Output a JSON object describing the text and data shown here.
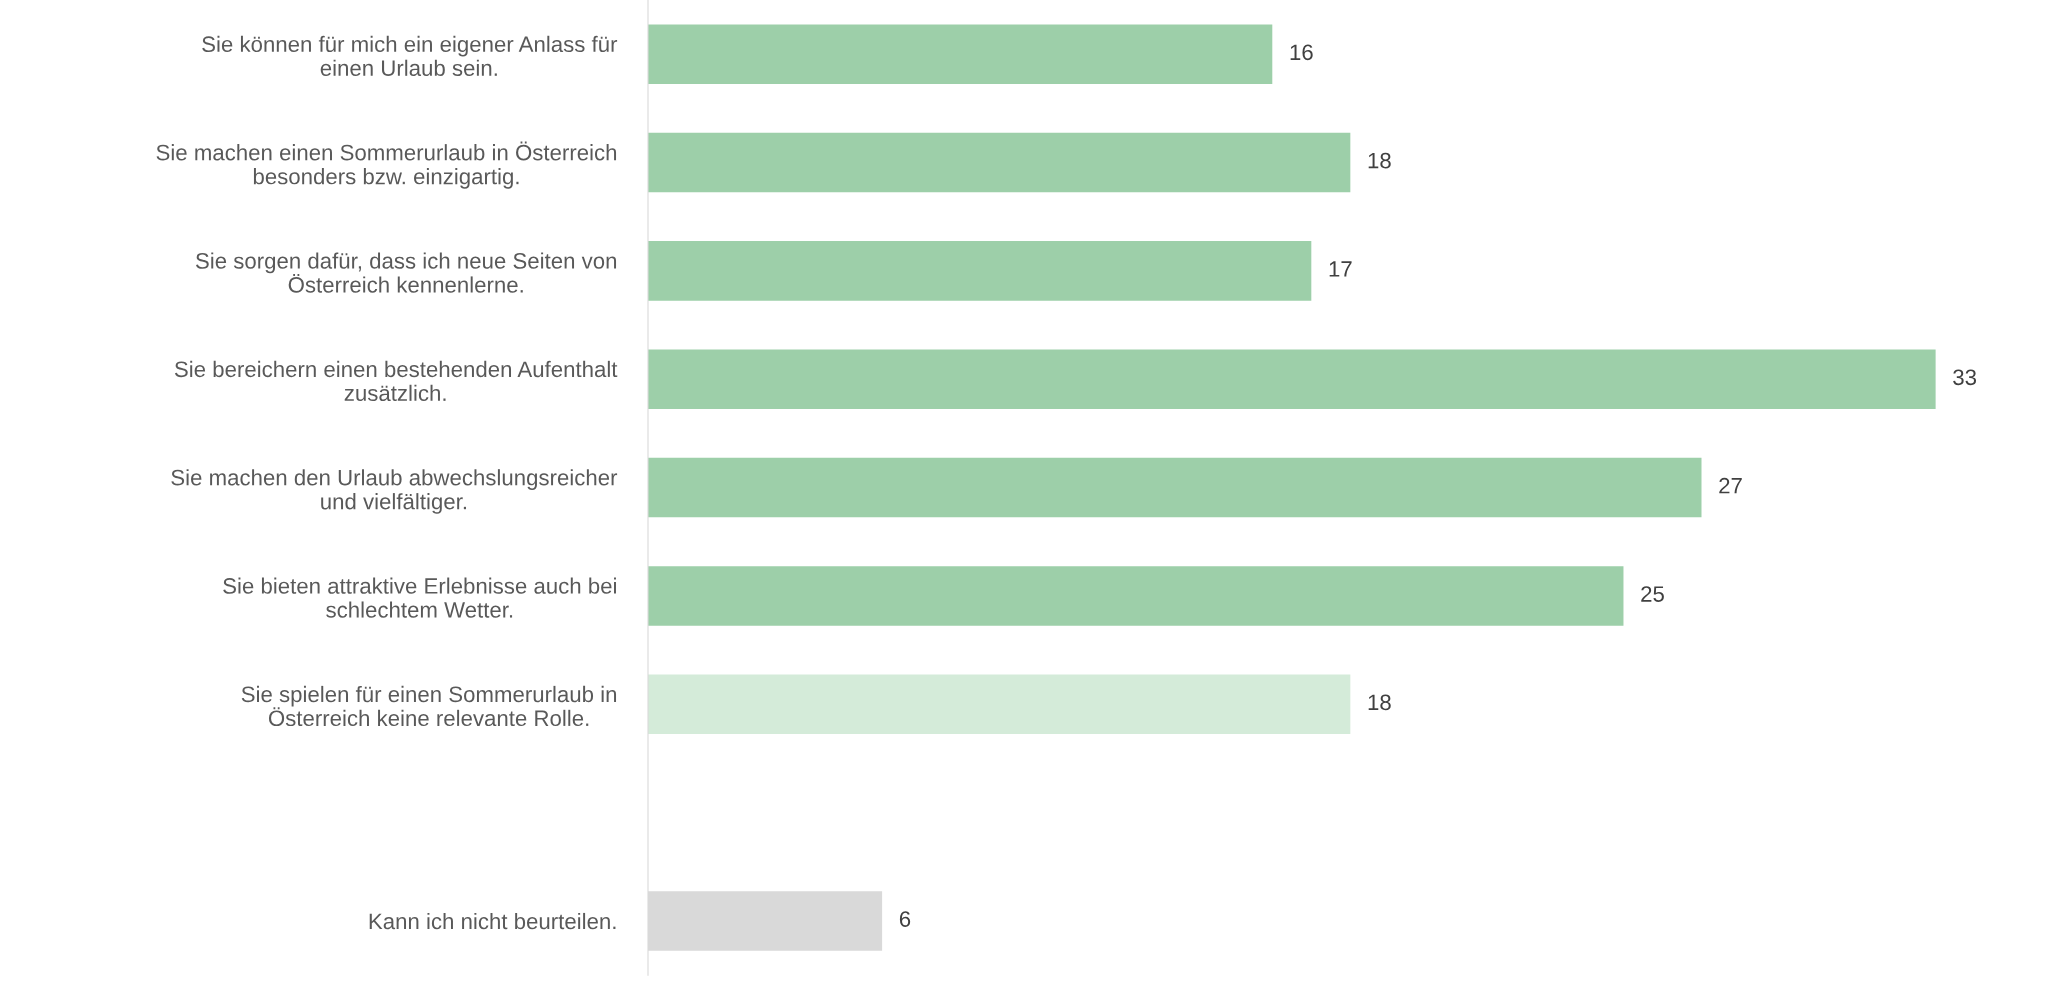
{
  "chart_data": {
    "type": "bar",
    "orientation": "horizontal",
    "categories": [
      "Sie können für mich ein eigener Anlass für\neinen Urlaub sein.",
      "Sie machen einen Sommerurlaub in Österreich\nbesonders bzw. einzigartig.",
      "Sie sorgen dafür, dass ich neue Seiten von\nÖsterreich kennenlerne.",
      "Sie bereichern einen bestehenden Aufenthalt\nzusätzlich.",
      "Sie machen den Urlaub abwechslungsreicher\nund vielfältiger.",
      "Sie bieten attraktive Erlebnisse auch bei\nschlechtem Wetter.",
      "Sie spielen für einen Sommerurlaub in\nÖsterreich keine relevante Rolle.",
      null,
      "Kann ich nicht beurteilen."
    ],
    "values": [
      16,
      18,
      17,
      33,
      27,
      25,
      18,
      null,
      6
    ],
    "colors": [
      "#9dcfa9",
      "#9dcfa9",
      "#9dcfa9",
      "#9dcfa9",
      "#9dcfa9",
      "#9dcfa9",
      "#d4ebd9",
      "#9dcfa9",
      "#d9d9d9"
    ],
    "data_labels": true,
    "grid": false,
    "legend": false
  }
}
